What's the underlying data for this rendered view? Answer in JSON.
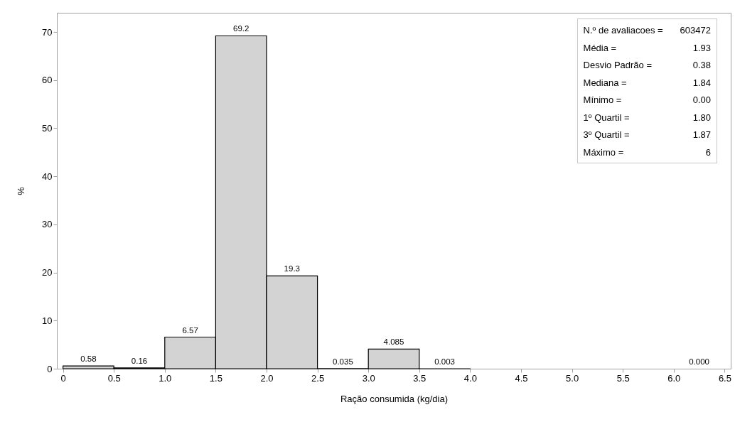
{
  "chart_data": {
    "type": "histogram",
    "xlabel": "Ração consumida (kg/dia)",
    "ylabel": "%",
    "bins": [
      0,
      0.5,
      1,
      1.5,
      2,
      2.5,
      3,
      3.5,
      4,
      4.5,
      5,
      5.5,
      6,
      6.5
    ],
    "values": [
      0.58,
      0.16,
      6.57,
      69.2,
      19.3,
      0.035,
      4.085,
      0.003,
      null,
      null,
      null,
      null,
      0
    ],
    "value_labels": [
      "0.58",
      "0.16",
      "6.57",
      "69.2",
      "19.3",
      "0.035",
      "4.085",
      "0.003",
      null,
      null,
      null,
      null,
      "0.000"
    ],
    "color": "#d3d3d3",
    "xlim": [
      -0.06,
      6.56
    ],
    "xticks": [
      0,
      0.5,
      {
        "value": 1,
        "label": "1.0"
      },
      1.5,
      {
        "value": 2,
        "label": "2.0"
      },
      2.5,
      {
        "value": 3,
        "label": "3.0"
      },
      3.5,
      {
        "value": 4,
        "label": "4.0"
      },
      4.5,
      {
        "value": 5,
        "label": "5.0"
      },
      5.5,
      {
        "value": 6,
        "label": "6.0"
      },
      6.5
    ],
    "ylim": [
      0,
      74
    ],
    "yticks": [
      0,
      10,
      20,
      30,
      40,
      50,
      60,
      70
    ],
    "grid": false,
    "annotations": [
      "N.º de avaliacoes = 603472",
      "Média = 1.93",
      "Desvio Padrão = 0.38",
      "Mediana = 1.84",
      "Mínimo = 0.00",
      "1º Quartil = 1.80",
      "3º Quartil = 1.87",
      "Máximo = 6"
    ]
  }
}
